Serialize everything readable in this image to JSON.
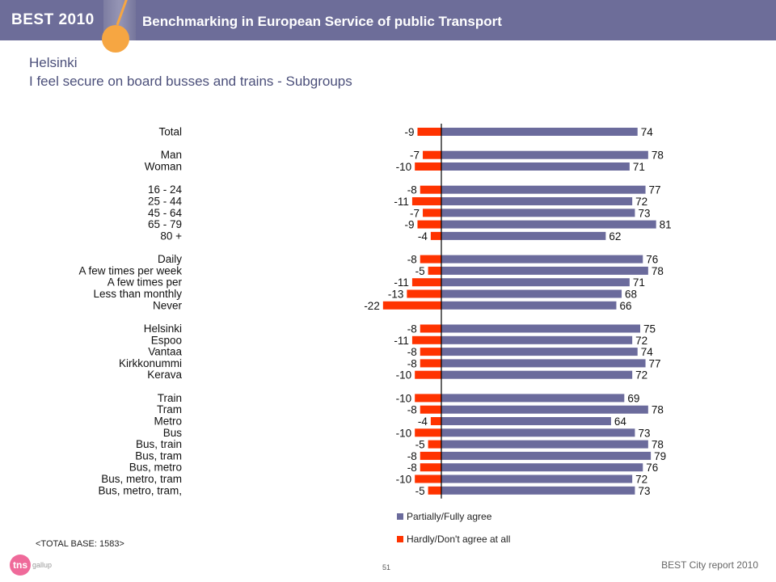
{
  "header": {
    "logo": "BEST 2010",
    "title": "Benchmarking in European Service of public Transport"
  },
  "page": {
    "title": "Helsinki",
    "subtitle": "I feel secure on board busses and trains - Subgroups"
  },
  "colors": {
    "header_bg": "#6d6d99",
    "agree": "#6b6b9c",
    "disagree": "#ff3300",
    "accent": "#f6a642"
  },
  "chart_data": {
    "type": "bar",
    "orientation": "horizontal",
    "categories": [
      "Total",
      "Man",
      "Woman",
      "16 - 24",
      "25 - 44",
      "45 - 64",
      "65 - 79",
      "80 +",
      "Daily",
      "A few times per week",
      "A few times per",
      "Less than monthly",
      "Never",
      "Helsinki",
      "Espoo",
      "Vantaa",
      "Kirkkonummi",
      "Kerava",
      "Train",
      "Tram",
      "Metro",
      "Bus",
      "Bus, train",
      "Bus, tram",
      "Bus, metro",
      "Bus, metro, tram",
      "Bus, metro, tram,"
    ],
    "groups": [
      1,
      2,
      5,
      5,
      5,
      9
    ],
    "series": [
      {
        "name": "Partially/Fully agree",
        "color": "#6b6b9c",
        "values": [
          74,
          78,
          71,
          77,
          72,
          73,
          81,
          62,
          76,
          78,
          71,
          68,
          66,
          75,
          72,
          74,
          77,
          72,
          69,
          78,
          64,
          73,
          78,
          79,
          76,
          72,
          73
        ]
      },
      {
        "name": "Hardly/Don't agree at all",
        "color": "#ff3300",
        "values": [
          -9,
          -7,
          -10,
          -8,
          -11,
          -7,
          -9,
          -4,
          -8,
          -5,
          -11,
          -13,
          -22,
          -8,
          -11,
          -8,
          -8,
          -10,
          -10,
          -8,
          -4,
          -10,
          -5,
          -8,
          -8,
          -10,
          -5
        ]
      }
    ],
    "xlim": [
      -22,
      82
    ],
    "grid": false,
    "legend_position": "bottom"
  },
  "notes": {
    "base": "<TOTAL BASE: 1583>",
    "page_number": "51",
    "report": "BEST City report 2010"
  },
  "brand": {
    "tns": "tns",
    "gallup": "gallup"
  }
}
